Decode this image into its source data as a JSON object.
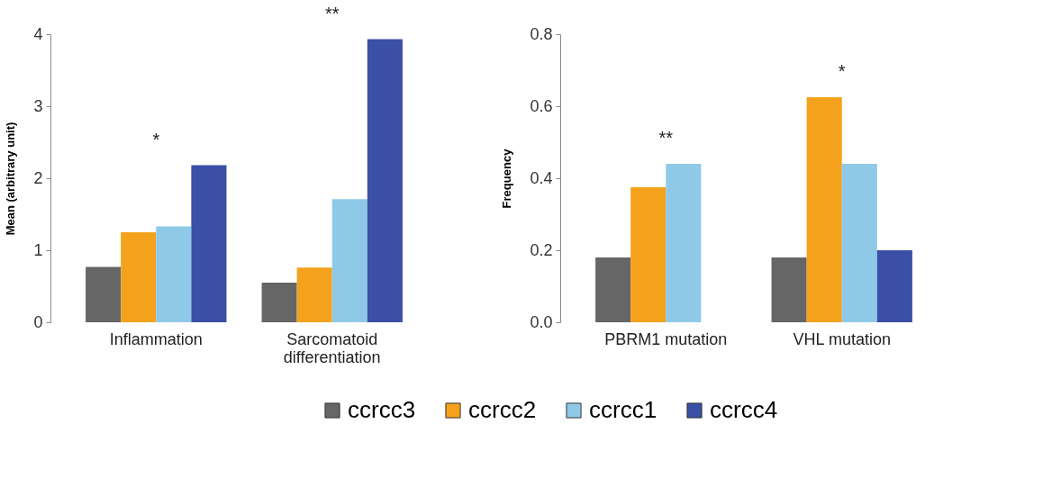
{
  "chart_data": [
    {
      "type": "bar",
      "ylabel": "Mean (arbitrary unit)",
      "categories": [
        "Inflammation",
        "Sarcomatoid differentiation"
      ],
      "series": [
        {
          "name": "ccrcc3",
          "color": "#666666",
          "values": [
            0.77,
            0.55
          ]
        },
        {
          "name": "ccrcc2",
          "color": "#f4a21c",
          "values": [
            1.25,
            0.76
          ]
        },
        {
          "name": "ccrcc1",
          "color": "#8ecae8",
          "values": [
            1.33,
            1.71
          ]
        },
        {
          "name": "ccrcc4",
          "color": "#3a4fa5",
          "values": [
            2.18,
            3.93
          ]
        }
      ],
      "ylim": [
        0,
        4
      ],
      "yticks": [
        0,
        1,
        2,
        3,
        4
      ],
      "grid": false,
      "legend": "bottom",
      "annotations": [
        "*",
        "**"
      ]
    },
    {
      "type": "bar",
      "ylabel": "Frequency",
      "categories": [
        "PBRM1 mutation",
        "VHL mutation"
      ],
      "series": [
        {
          "name": "ccrcc3",
          "color": "#666666",
          "values": [
            0.18,
            0.18
          ]
        },
        {
          "name": "ccrcc2",
          "color": "#f4a21c",
          "values": [
            0.375,
            0.625
          ]
        },
        {
          "name": "ccrcc1",
          "color": "#8ecae8",
          "values": [
            0.44,
            0.44
          ]
        },
        {
          "name": "ccrcc4",
          "color": "#3a4fa5",
          "values": [
            0,
            0.2
          ]
        }
      ],
      "ylim": [
        0,
        0.8
      ],
      "yticks": [
        {
          "value": 0,
          "label": "0.0"
        },
        0.2,
        0.4,
        0.6,
        0.8
      ],
      "grid": false,
      "annotations": [
        "**",
        "*"
      ]
    }
  ]
}
